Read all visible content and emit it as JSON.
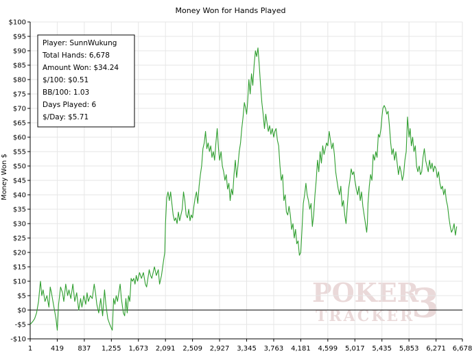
{
  "chart_data": {
    "type": "line",
    "title": "Money Won for Hands Played",
    "ylabel": "Money Won $",
    "xlabel": "",
    "xlim": [
      1,
      6678
    ],
    "ylim": [
      -10,
      100
    ],
    "y_ticks": [
      -10,
      -5,
      0,
      5,
      10,
      15,
      20,
      25,
      30,
      35,
      40,
      45,
      50,
      55,
      60,
      65,
      70,
      75,
      80,
      85,
      90,
      95,
      100
    ],
    "y_tick_labels": [
      "-$10",
      "-$5",
      "$0",
      "$5",
      "$10",
      "$15",
      "$20",
      "$25",
      "$30",
      "$35",
      "$40",
      "$45",
      "$50",
      "$55",
      "$60",
      "$65",
      "$70",
      "$75",
      "$80",
      "$85",
      "$90",
      "$95",
      "$100"
    ],
    "x_ticks": [
      1,
      419,
      837,
      1255,
      1673,
      2091,
      2509,
      2927,
      3345,
      3763,
      4181,
      4599,
      5017,
      5435,
      5853,
      6271,
      6678
    ],
    "x_tick_labels": [
      "1",
      "419",
      "837",
      "1,255",
      "1,673",
      "2,091",
      "2,509",
      "2,927",
      "3,345",
      "3,763",
      "4,181",
      "4,599",
      "5,017",
      "5,435",
      "5,853",
      "6,271",
      "6,678"
    ],
    "grid": true,
    "line_color": "#2e9e2e",
    "series": [
      {
        "points": [
          [
            1,
            -5
          ],
          [
            40,
            -4
          ],
          [
            70,
            -3
          ],
          [
            100,
            -1
          ],
          [
            130,
            3
          ],
          [
            150,
            8
          ],
          [
            160,
            10
          ],
          [
            180,
            5
          ],
          [
            200,
            7
          ],
          [
            230,
            3
          ],
          [
            260,
            5
          ],
          [
            290,
            1
          ],
          [
            310,
            8
          ],
          [
            330,
            6
          ],
          [
            360,
            2
          ],
          [
            400,
            -3
          ],
          [
            420,
            -7
          ],
          [
            440,
            2
          ],
          [
            470,
            8
          ],
          [
            500,
            6
          ],
          [
            520,
            3
          ],
          [
            550,
            9
          ],
          [
            580,
            5
          ],
          [
            600,
            7
          ],
          [
            630,
            4
          ],
          [
            660,
            9
          ],
          [
            690,
            3
          ],
          [
            720,
            6
          ],
          [
            750,
            0
          ],
          [
            780,
            4
          ],
          [
            800,
            1
          ],
          [
            830,
            5
          ],
          [
            860,
            2
          ],
          [
            880,
            6
          ],
          [
            900,
            3
          ],
          [
            930,
            5
          ],
          [
            960,
            4
          ],
          [
            990,
            9
          ],
          [
            1010,
            6
          ],
          [
            1030,
            2
          ],
          [
            1060,
            -1
          ],
          [
            1090,
            4
          ],
          [
            1120,
            -2
          ],
          [
            1150,
            7
          ],
          [
            1170,
            2
          ],
          [
            1200,
            -3
          ],
          [
            1230,
            -5
          ],
          [
            1250,
            -6
          ],
          [
            1270,
            -7
          ],
          [
            1290,
            4
          ],
          [
            1310,
            2
          ],
          [
            1330,
            5
          ],
          [
            1350,
            3
          ],
          [
            1370,
            6
          ],
          [
            1390,
            9
          ],
          [
            1410,
            4
          ],
          [
            1440,
            -1
          ],
          [
            1460,
            -2
          ],
          [
            1480,
            4
          ],
          [
            1500,
            -1
          ],
          [
            1520,
            5
          ],
          [
            1540,
            3
          ],
          [
            1560,
            11
          ],
          [
            1580,
            10
          ],
          [
            1600,
            11
          ],
          [
            1620,
            9
          ],
          [
            1640,
            12
          ],
          [
            1660,
            10
          ],
          [
            1690,
            13
          ],
          [
            1720,
            11
          ],
          [
            1750,
            13
          ],
          [
            1780,
            9
          ],
          [
            1800,
            8
          ],
          [
            1820,
            11
          ],
          [
            1840,
            14
          ],
          [
            1860,
            12
          ],
          [
            1880,
            11
          ],
          [
            1900,
            13
          ],
          [
            1920,
            15
          ],
          [
            1950,
            12
          ],
          [
            1980,
            14
          ],
          [
            2000,
            9
          ],
          [
            2030,
            12
          ],
          [
            2060,
            17
          ],
          [
            2080,
            20
          ],
          [
            2091,
            30
          ],
          [
            2110,
            39
          ],
          [
            2130,
            41
          ],
          [
            2150,
            38
          ],
          [
            2170,
            41
          ],
          [
            2190,
            37
          ],
          [
            2210,
            33
          ],
          [
            2230,
            31
          ],
          [
            2250,
            32
          ],
          [
            2270,
            30
          ],
          [
            2290,
            34
          ],
          [
            2310,
            31
          ],
          [
            2330,
            33
          ],
          [
            2350,
            35
          ],
          [
            2370,
            41
          ],
          [
            2390,
            38
          ],
          [
            2410,
            33
          ],
          [
            2430,
            32
          ],
          [
            2450,
            35
          ],
          [
            2470,
            31
          ],
          [
            2490,
            33
          ],
          [
            2509,
            32
          ],
          [
            2530,
            36
          ],
          [
            2550,
            39
          ],
          [
            2570,
            41
          ],
          [
            2590,
            37
          ],
          [
            2610,
            43
          ],
          [
            2630,
            47
          ],
          [
            2650,
            50
          ],
          [
            2670,
            56
          ],
          [
            2690,
            58
          ],
          [
            2710,
            62
          ],
          [
            2730,
            56
          ],
          [
            2750,
            58
          ],
          [
            2770,
            55
          ],
          [
            2790,
            57
          ],
          [
            2810,
            53
          ],
          [
            2830,
            55
          ],
          [
            2850,
            52
          ],
          [
            2870,
            58
          ],
          [
            2890,
            63
          ],
          [
            2910,
            56
          ],
          [
            2927,
            52
          ],
          [
            2950,
            55
          ],
          [
            2970,
            50
          ],
          [
            2990,
            48
          ],
          [
            3010,
            45
          ],
          [
            3030,
            47
          ],
          [
            3050,
            42
          ],
          [
            3070,
            44
          ],
          [
            3090,
            38
          ],
          [
            3110,
            42
          ],
          [
            3130,
            40
          ],
          [
            3150,
            47
          ],
          [
            3170,
            52
          ],
          [
            3190,
            46
          ],
          [
            3210,
            50
          ],
          [
            3230,
            55
          ],
          [
            3250,
            58
          ],
          [
            3270,
            63
          ],
          [
            3290,
            67
          ],
          [
            3310,
            72
          ],
          [
            3330,
            70
          ],
          [
            3345,
            68
          ],
          [
            3360,
            72
          ],
          [
            3380,
            80
          ],
          [
            3400,
            75
          ],
          [
            3420,
            82
          ],
          [
            3440,
            78
          ],
          [
            3460,
            85
          ],
          [
            3480,
            90
          ],
          [
            3500,
            88
          ],
          [
            3520,
            91
          ],
          [
            3540,
            85
          ],
          [
            3560,
            78
          ],
          [
            3580,
            72
          ],
          [
            3600,
            68
          ],
          [
            3620,
            63
          ],
          [
            3640,
            68
          ],
          [
            3660,
            65
          ],
          [
            3680,
            62
          ],
          [
            3700,
            64
          ],
          [
            3720,
            61
          ],
          [
            3740,
            63
          ],
          [
            3763,
            60
          ],
          [
            3780,
            62
          ],
          [
            3800,
            63
          ],
          [
            3820,
            59
          ],
          [
            3840,
            57
          ],
          [
            3860,
            50
          ],
          [
            3880,
            45
          ],
          [
            3900,
            47
          ],
          [
            3920,
            38
          ],
          [
            3940,
            40
          ],
          [
            3960,
            34
          ],
          [
            3980,
            33
          ],
          [
            4000,
            36
          ],
          [
            4020,
            33
          ],
          [
            4040,
            28
          ],
          [
            4060,
            30
          ],
          [
            4080,
            25
          ],
          [
            4100,
            28
          ],
          [
            4120,
            23
          ],
          [
            4140,
            24
          ],
          [
            4160,
            19
          ],
          [
            4181,
            20
          ],
          [
            4200,
            28
          ],
          [
            4220,
            37
          ],
          [
            4240,
            40
          ],
          [
            4260,
            44
          ],
          [
            4280,
            40
          ],
          [
            4300,
            38
          ],
          [
            4320,
            35
          ],
          [
            4340,
            37
          ],
          [
            4360,
            29
          ],
          [
            4380,
            33
          ],
          [
            4400,
            40
          ],
          [
            4420,
            45
          ],
          [
            4440,
            52
          ],
          [
            4460,
            48
          ],
          [
            4480,
            55
          ],
          [
            4500,
            51
          ],
          [
            4520,
            57
          ],
          [
            4540,
            54
          ],
          [
            4560,
            56
          ],
          [
            4580,
            58
          ],
          [
            4599,
            57
          ],
          [
            4620,
            62
          ],
          [
            4640,
            59
          ],
          [
            4660,
            56
          ],
          [
            4680,
            58
          ],
          [
            4700,
            54
          ],
          [
            4720,
            48
          ],
          [
            4740,
            45
          ],
          [
            4760,
            42
          ],
          [
            4780,
            40
          ],
          [
            4800,
            43
          ],
          [
            4820,
            36
          ],
          [
            4840,
            38
          ],
          [
            4860,
            33
          ],
          [
            4880,
            30
          ],
          [
            4900,
            36
          ],
          [
            4920,
            42
          ],
          [
            4940,
            45
          ],
          [
            4960,
            49
          ],
          [
            4980,
            47
          ],
          [
            5000,
            48
          ],
          [
            5017,
            45
          ],
          [
            5040,
            42
          ],
          [
            5060,
            40
          ],
          [
            5080,
            43
          ],
          [
            5100,
            38
          ],
          [
            5120,
            41
          ],
          [
            5140,
            36
          ],
          [
            5160,
            33
          ],
          [
            5180,
            30
          ],
          [
            5200,
            27
          ],
          [
            5210,
            30
          ],
          [
            5220,
            37
          ],
          [
            5240,
            43
          ],
          [
            5260,
            47
          ],
          [
            5280,
            45
          ],
          [
            5300,
            54
          ],
          [
            5320,
            52
          ],
          [
            5340,
            55
          ],
          [
            5360,
            53
          ],
          [
            5380,
            61
          ],
          [
            5400,
            60
          ],
          [
            5420,
            63
          ],
          [
            5435,
            67
          ],
          [
            5450,
            70
          ],
          [
            5470,
            71
          ],
          [
            5490,
            70
          ],
          [
            5510,
            68
          ],
          [
            5530,
            69
          ],
          [
            5550,
            64
          ],
          [
            5570,
            58
          ],
          [
            5590,
            54
          ],
          [
            5610,
            56
          ],
          [
            5630,
            52
          ],
          [
            5650,
            55
          ],
          [
            5670,
            51
          ],
          [
            5690,
            47
          ],
          [
            5710,
            50
          ],
          [
            5730,
            48
          ],
          [
            5750,
            45
          ],
          [
            5770,
            47
          ],
          [
            5790,
            52
          ],
          [
            5810,
            55
          ],
          [
            5830,
            67
          ],
          [
            5853,
            60
          ],
          [
            5870,
            63
          ],
          [
            5890,
            57
          ],
          [
            5910,
            60
          ],
          [
            5930,
            55
          ],
          [
            5950,
            57
          ],
          [
            5970,
            50
          ],
          [
            5990,
            48
          ],
          [
            6010,
            50
          ],
          [
            6030,
            47
          ],
          [
            6050,
            48
          ],
          [
            6070,
            53
          ],
          [
            6090,
            56
          ],
          [
            6110,
            52
          ],
          [
            6130,
            50
          ],
          [
            6150,
            48
          ],
          [
            6170,
            52
          ],
          [
            6190,
            49
          ],
          [
            6210,
            51
          ],
          [
            6230,
            48
          ],
          [
            6250,
            50
          ],
          [
            6271,
            49
          ],
          [
            6290,
            46
          ],
          [
            6310,
            48
          ],
          [
            6330,
            44
          ],
          [
            6350,
            42
          ],
          [
            6370,
            43
          ],
          [
            6390,
            40
          ],
          [
            6410,
            42
          ],
          [
            6430,
            38
          ],
          [
            6450,
            36
          ],
          [
            6470,
            32
          ],
          [
            6490,
            29
          ],
          [
            6510,
            27
          ],
          [
            6530,
            28
          ],
          [
            6550,
            30
          ],
          [
            6570,
            26
          ],
          [
            6590,
            29
          ]
        ]
      }
    ]
  },
  "legend": {
    "lines": [
      "Player: SunnWukung",
      "Total Hands: 6,678",
      "Amount Won: $34.24",
      "$/100: $0.51",
      "BB/100: 1.03",
      "Days Played: 6",
      "$/Day: $5.71"
    ]
  },
  "watermark": {
    "top_word": "POKER",
    "bottom_word": "TRACKER",
    "digit": "3"
  }
}
